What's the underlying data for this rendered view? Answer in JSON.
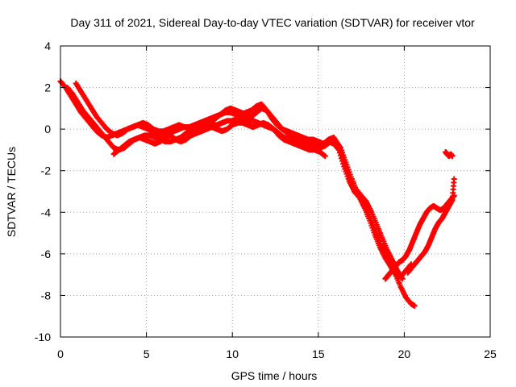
{
  "chart_data": {
    "type": "scatter",
    "title": "Day 311 of 2021, Sidereal Day-to-day VTEC variation (SDTVAR) for receiver vtor",
    "xlabel": "GPS time / hours",
    "ylabel": "SDTVAR / TECUs",
    "xlim": [
      0,
      25
    ],
    "ylim": [
      -10,
      4
    ],
    "xticks": [
      0,
      5,
      10,
      15,
      20,
      25
    ],
    "yticks": [
      -10,
      -8,
      -6,
      -4,
      -2,
      0,
      2,
      4
    ],
    "grid": true,
    "legend": "none",
    "marker": "plus",
    "series": [
      {
        "name": "SDTVAR",
        "color": "#ff0000",
        "tracks": [
          {
            "x": [
              0.0,
              0.3,
              0.6,
              0.9,
              1.2,
              1.5,
              1.8,
              2.1,
              2.4,
              2.7,
              3.0,
              3.3,
              3.6,
              3.9,
              4.2,
              4.5,
              4.8,
              5.1,
              5.4,
              5.7,
              6.0,
              6.3,
              6.6,
              6.9,
              7.2,
              7.5,
              7.8,
              8.1,
              8.4,
              8.7,
              9.0,
              9.3,
              9.6,
              9.9,
              10.2,
              10.5,
              10.8,
              11.1,
              11.4,
              11.7,
              12.0,
              12.3,
              12.6,
              12.9,
              13.2,
              13.5,
              13.8,
              14.1,
              14.4,
              14.7,
              15.0,
              15.3,
              15.6,
              15.9,
              16.2,
              16.5,
              16.8,
              17.1,
              17.4,
              17.7,
              18.0,
              18.3,
              18.6,
              18.9,
              19.2,
              19.5,
              19.8,
              20.1,
              20.4,
              20.6
            ],
            "y": [
              2.3,
              2.0,
              1.6,
              1.2,
              0.8,
              0.5,
              0.2,
              -0.1,
              -0.3,
              -0.4,
              -0.3,
              -0.2,
              -0.1,
              0.0,
              0.1,
              0.2,
              0.1,
              0.0,
              -0.1,
              -0.2,
              -0.3,
              -0.2,
              -0.1,
              0.0,
              0.1,
              0.1,
              0.0,
              0.1,
              0.2,
              0.3,
              0.5,
              0.7,
              0.9,
              1.0,
              0.9,
              0.8,
              0.7,
              0.6,
              0.8,
              1.0,
              0.9,
              0.6,
              0.3,
              0.0,
              -0.2,
              -0.3,
              -0.4,
              -0.5,
              -0.6,
              -0.7,
              -0.8,
              -0.7,
              -0.6,
              -0.7,
              -1.0,
              -1.8,
              -2.5,
              -3.0,
              -3.2,
              -3.6,
              -4.2,
              -4.8,
              -5.5,
              -6.0,
              -6.5,
              -7.0,
              -7.6,
              -8.1,
              -8.4,
              -8.5
            ]
          },
          {
            "x": [
              0.4,
              0.7,
              1.0,
              1.3,
              1.6,
              1.9,
              2.2,
              2.5,
              2.8,
              3.1,
              3.4,
              3.7,
              4.0,
              4.3,
              4.6,
              4.9,
              5.2,
              5.5,
              5.8,
              6.1,
              6.4,
              6.7,
              7.0,
              7.3,
              7.6,
              7.9,
              8.2,
              8.5,
              8.8,
              9.1,
              9.4,
              9.7,
              10.0,
              10.3,
              10.6,
              10.9,
              11.2,
              11.5,
              11.8,
              12.1,
              12.4,
              12.7,
              13.0,
              13.3,
              13.6,
              13.9,
              14.2,
              14.5,
              14.8,
              15.1,
              15.4,
              15.7,
              16.0,
              16.3,
              16.6,
              16.9,
              17.2,
              17.5,
              17.8,
              18.1,
              18.4,
              18.7,
              19.0,
              19.3,
              19.6,
              19.9
            ],
            "y": [
              2.0,
              1.7,
              1.3,
              0.9,
              0.6,
              0.3,
              0.0,
              -0.3,
              -0.6,
              -0.9,
              -1.0,
              -0.9,
              -0.7,
              -0.5,
              -0.4,
              -0.3,
              -0.3,
              -0.4,
              -0.5,
              -0.6,
              -0.6,
              -0.5,
              -0.4,
              -0.2,
              -0.1,
              -0.1,
              0.0,
              0.1,
              0.2,
              0.2,
              0.3,
              0.4,
              0.4,
              0.5,
              0.5,
              0.4,
              0.4,
              0.3,
              0.2,
              0.1,
              0.0,
              -0.2,
              -0.4,
              -0.5,
              -0.6,
              -0.6,
              -0.7,
              -0.8,
              -0.9,
              -0.9,
              -0.8,
              -0.6,
              -0.6,
              -0.9,
              -1.6,
              -2.3,
              -2.9,
              -3.2,
              -3.5,
              -4.0,
              -4.6,
              -5.2,
              -5.8,
              -6.3,
              -6.8,
              -7.2
            ]
          },
          {
            "x": [
              0.9,
              1.2,
              1.5,
              1.8,
              2.1,
              2.4,
              2.7,
              3.0,
              3.3,
              3.6,
              3.9,
              4.2,
              4.5,
              4.8,
              5.1,
              5.4,
              5.7,
              6.0,
              6.3,
              6.6,
              6.9,
              7.2,
              7.5,
              7.8,
              8.1,
              8.4,
              8.7,
              9.0,
              9.3,
              9.6,
              9.9,
              10.2,
              10.5,
              10.8,
              11.1,
              11.4,
              11.7,
              12.0,
              12.3,
              12.6,
              12.9,
              13.2,
              13.5,
              13.8,
              14.1,
              14.4,
              14.7,
              15.0,
              15.3,
              15.6,
              15.9,
              16.2,
              16.5,
              16.8,
              17.1,
              17.4,
              17.7,
              18.0,
              18.3,
              18.6,
              18.9,
              19.2,
              19.5,
              19.8,
              20.1,
              20.4
            ],
            "y": [
              2.2,
              1.8,
              1.4,
              1.0,
              0.6,
              0.3,
              0.0,
              -0.2,
              -0.3,
              -0.2,
              0.0,
              0.1,
              0.2,
              0.3,
              0.2,
              0.0,
              -0.1,
              -0.1,
              0.0,
              0.1,
              0.2,
              0.1,
              0.1,
              0.2,
              0.3,
              0.4,
              0.5,
              0.6,
              0.7,
              0.8,
              0.8,
              0.7,
              0.7,
              0.8,
              0.9,
              1.1,
              1.2,
              0.9,
              0.5,
              0.2,
              0.0,
              -0.1,
              -0.2,
              -0.3,
              -0.4,
              -0.5,
              -0.5,
              -0.6,
              -0.7,
              -0.5,
              -0.4,
              -0.8,
              -1.6,
              -2.4,
              -3.0,
              -3.3,
              -3.8,
              -4.4,
              -5.1,
              -5.7,
              -6.2,
              -6.6,
              -7.0,
              -7.1,
              -6.8,
              -6.5
            ]
          },
          {
            "x": [
              3.1,
              3.4,
              3.7,
              4.0,
              4.3,
              4.6,
              4.9,
              5.2,
              5.5,
              5.8,
              6.1,
              6.4,
              6.7,
              7.0,
              7.3,
              7.6,
              7.9,
              8.2,
              8.5,
              8.8,
              9.1,
              9.4,
              9.7,
              10.0,
              10.3,
              10.6,
              10.9,
              11.2,
              11.5,
              11.8,
              12.1,
              12.4,
              12.7,
              13.0,
              13.3,
              13.6,
              13.9,
              14.2,
              14.5,
              14.8,
              15.1,
              15.4
            ],
            "y": [
              -1.2,
              -1.0,
              -0.8,
              -0.6,
              -0.5,
              -0.4,
              -0.5,
              -0.6,
              -0.7,
              -0.6,
              -0.4,
              -0.3,
              -0.5,
              -0.6,
              -0.5,
              -0.3,
              -0.2,
              -0.1,
              0.0,
              0.1,
              0.0,
              -0.1,
              0.0,
              0.2,
              0.3,
              0.3,
              0.2,
              0.1,
              0.2,
              0.3,
              0.2,
              0.0,
              -0.3,
              -0.5,
              -0.6,
              -0.7,
              -0.8,
              -0.9,
              -1.0,
              -1.0,
              -1.1,
              -1.3
            ]
          },
          {
            "x": [
              18.9,
              19.1,
              19.3,
              19.5,
              19.7,
              19.9,
              20.1,
              20.3,
              20.5,
              20.7,
              20.9,
              21.1,
              21.3,
              21.5,
              21.7,
              21.9,
              22.1,
              22.3,
              22.5,
              22.7,
              22.9
            ],
            "y": [
              -7.2,
              -7.0,
              -6.8,
              -6.6,
              -6.4,
              -6.3,
              -6.1,
              -5.8,
              -5.4,
              -5.0,
              -4.6,
              -4.3,
              -4.0,
              -3.8,
              -3.7,
              -3.8,
              -3.9,
              -3.8,
              -3.6,
              -3.4,
              -3.2
            ]
          },
          {
            "x": [
              20.2,
              20.4,
              20.6,
              20.8,
              21.0,
              21.2,
              21.4,
              21.6,
              21.8,
              22.0,
              22.2,
              22.4,
              22.6,
              22.8,
              22.9
            ],
            "y": [
              -6.9,
              -6.7,
              -6.5,
              -6.3,
              -6.1,
              -5.9,
              -5.6,
              -5.2,
              -4.8,
              -4.5,
              -4.3,
              -4.0,
              -3.7,
              -3.4,
              -2.4
            ]
          },
          {
            "x": [
              22.4,
              22.5,
              22.6,
              22.7,
              22.8
            ],
            "y": [
              -1.1,
              -1.2,
              -1.3,
              -1.2,
              -1.3
            ]
          }
        ]
      }
    ]
  }
}
